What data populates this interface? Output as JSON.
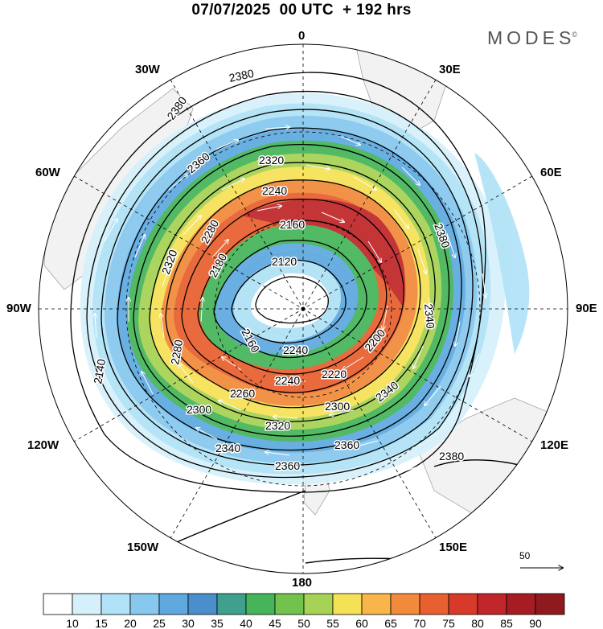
{
  "title": "07/07/2025  00 UTC  + 192 hrs",
  "brand": {
    "name": "MODES",
    "mark": "©"
  },
  "longitude_labels": {
    "n": "0",
    "ne": "30E",
    "nne": "60E",
    "e": "90E",
    "se_upper": "120E",
    "se": "150E",
    "s": "180",
    "sw": "150W",
    "sw_upper": "120W",
    "w": "90W",
    "nw_lower": "60W",
    "nw": "30W"
  },
  "contour_labels": [
    "2380",
    "2380",
    "2360",
    "2320",
    "2240",
    "2160",
    "2120",
    "2180",
    "2280",
    "2320",
    "2380",
    "2340",
    "2200",
    "2220",
    "2240",
    "2260",
    "2300",
    "2300",
    "2320",
    "2340",
    "2360",
    "2360",
    "2380",
    "2340",
    "2280",
    "2240",
    "2160",
    "2140"
  ],
  "reference_vector": {
    "label": "50"
  },
  "colorbar": {
    "ticks": [
      "10",
      "15",
      "20",
      "25",
      "30",
      "35",
      "40",
      "45",
      "50",
      "55",
      "60",
      "65",
      "70",
      "75",
      "80",
      "85",
      "90"
    ],
    "colors": [
      "#ffffff",
      "#d6f0fb",
      "#b1e2f7",
      "#86c8ee",
      "#5fa9e0",
      "#4a8fcc",
      "#3fa08d",
      "#45b45a",
      "#72c24e",
      "#a6d255",
      "#f5e156",
      "#f7b54a",
      "#f28a3c",
      "#e8602f",
      "#d83a2a",
      "#c0262a",
      "#a51d22",
      "#8e1a1f"
    ]
  }
}
